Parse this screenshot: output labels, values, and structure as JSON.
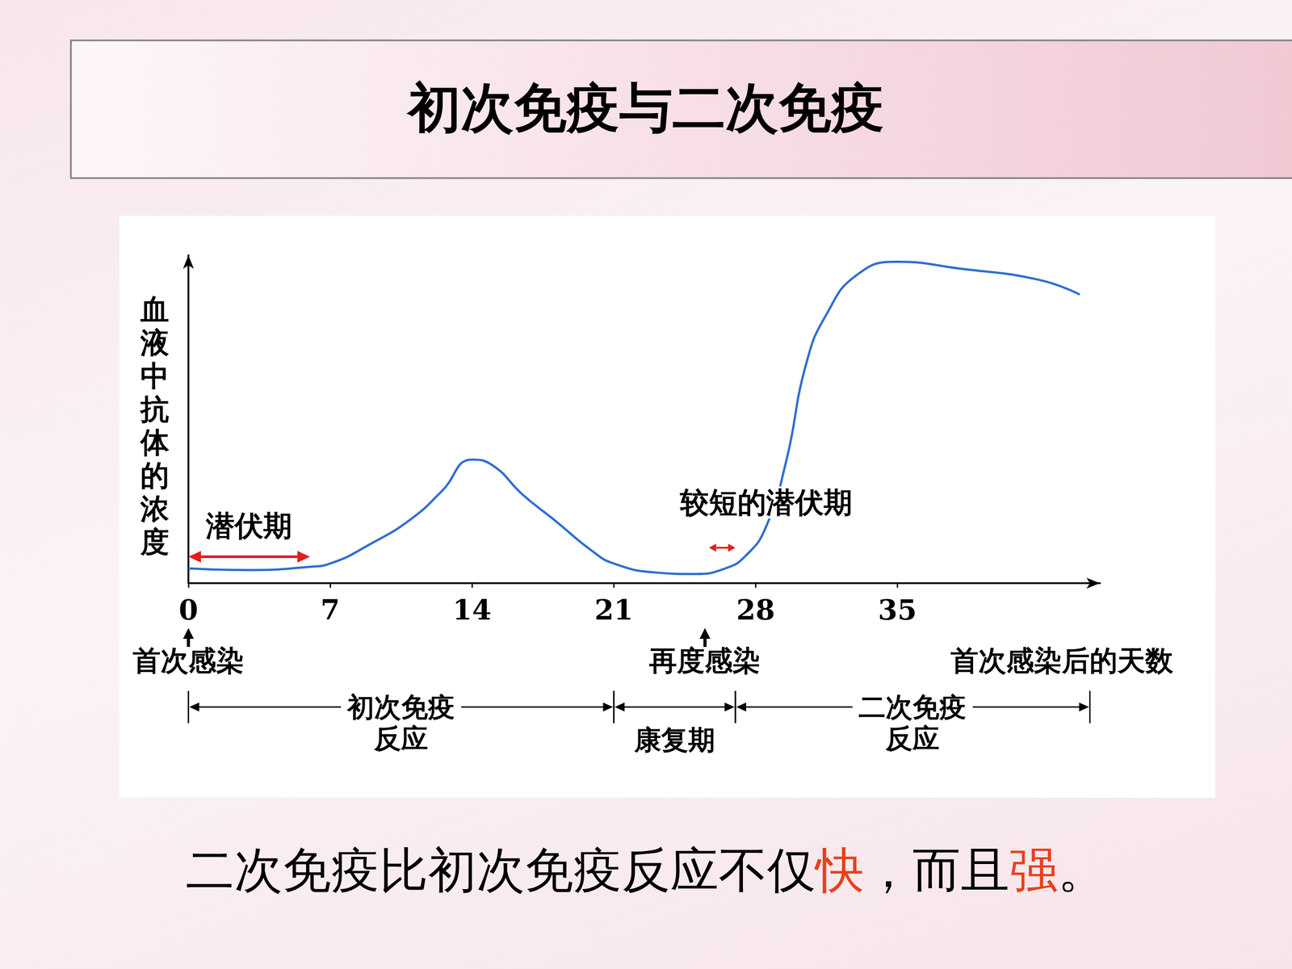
{
  "chart_data": {
    "type": "line",
    "title": "初次免疫与二次免疫",
    "y_label": "血液中抗体的浓度",
    "x_label": "首次感染后的天数",
    "x": [
      0,
      3,
      6,
      7,
      9,
      11,
      12.5,
      14,
      15,
      16.5,
      18,
      20,
      21,
      23,
      25,
      26.5,
      27.5,
      28.5,
      29.5,
      30.5,
      31.5,
      33,
      35,
      38,
      42,
      44
    ],
    "values": [
      4.5,
      4,
      5,
      6,
      12,
      19.6,
      28,
      37.7,
      36,
      27,
      19.6,
      9.5,
      6,
      3.3,
      2.8,
      4.5,
      8.3,
      17,
      37,
      67,
      82,
      94,
      98,
      96,
      92.5,
      88
    ],
    "color": "#2f6fd0",
    "xlim": [
      0,
      45
    ],
    "xticks": [
      0,
      7,
      14,
      21,
      28,
      35
    ],
    "ylim": [
      0,
      100
    ],
    "tick_labels": "x",
    "grid": false,
    "annotations": [
      {
        "text": "潜伏期",
        "x": [
          0,
          6
        ],
        "color": "#e02020"
      },
      {
        "text": "较短的潜伏期",
        "x": [
          25.7,
          27
        ],
        "color": "#e02020"
      }
    ],
    "events": [
      {
        "text": "首次感染",
        "x": 0
      },
      {
        "text": "再度感染",
        "x": 25.5
      }
    ],
    "phases": [
      {
        "text": "初次免疫\n反应",
        "x": [
          0,
          21
        ]
      },
      {
        "text": "康复期",
        "x": [
          21,
          27
        ]
      },
      {
        "text": "二次免疫\n反应",
        "x": [
          27,
          44.5
        ]
      }
    ]
  },
  "caption": [
    {
      "text": "二次免疫比初次免疫反应不仅"
    },
    {
      "text": "快",
      "color": "#e8401c"
    },
    {
      "text": "，而且"
    },
    {
      "text": "强",
      "color": "#e8401c"
    },
    {
      "text": "。"
    }
  ]
}
